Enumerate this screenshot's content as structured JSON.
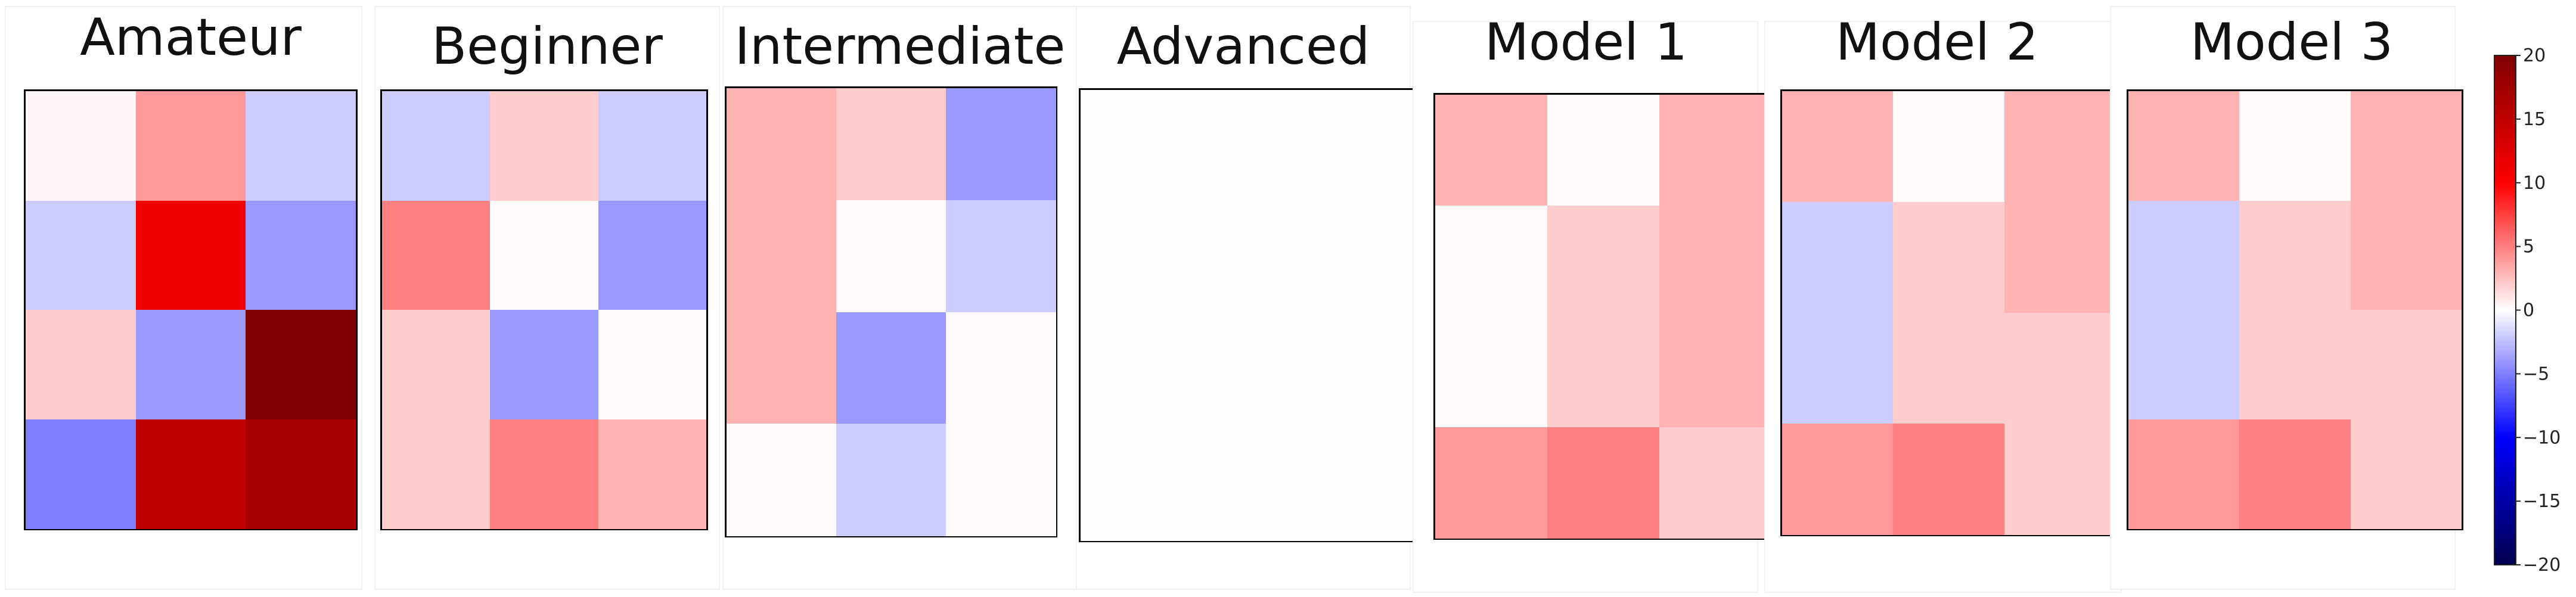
{
  "chart_data": {
    "type": "heatmap",
    "colormap": "seismic",
    "vmin": -20,
    "vmax": 20,
    "colorbar_ticks": [
      20,
      15,
      10,
      5,
      0,
      -5,
      -10,
      -15,
      -20
    ],
    "colorbar_tick_labels": [
      "20",
      "15",
      "10",
      "5",
      "0",
      "−5",
      "−10",
      "−15",
      "−20"
    ],
    "panels": [
      {
        "title": "Amateur",
        "rows": 4,
        "cols": 3,
        "values": [
          [
            0.3,
            4,
            -2
          ],
          [
            -2,
            11,
            -4
          ],
          [
            2,
            -4,
            20
          ],
          [
            -5,
            15,
            17
          ]
        ]
      },
      {
        "title": "Beginner",
        "rows": 4,
        "cols": 3,
        "values": [
          [
            -2,
            2,
            -2
          ],
          [
            5,
            0.2,
            -4
          ],
          [
            2,
            -4,
            0.2
          ],
          [
            2,
            5,
            3
          ]
        ]
      },
      {
        "title": "Intermediate",
        "rows": 4,
        "cols": 3,
        "values": [
          [
            3,
            2,
            -4
          ],
          [
            3,
            0.2,
            -2
          ],
          [
            3,
            -4,
            0.2
          ],
          [
            0.2,
            -2,
            0.2
          ]
        ]
      },
      {
        "title": "Advanced",
        "rows": 1,
        "cols": 1,
        "values": [
          [
            0.1
          ]
        ]
      },
      {
        "title": "Model 1",
        "rows": 4,
        "cols": 3,
        "values": [
          [
            3,
            0.2,
            3
          ],
          [
            0.2,
            2,
            3
          ],
          [
            0.2,
            2,
            3
          ],
          [
            4,
            5,
            2
          ]
        ]
      },
      {
        "title": "Model 2",
        "rows": 4,
        "cols": 3,
        "values": [
          [
            3,
            0.2,
            3
          ],
          [
            -2,
            2,
            3
          ],
          [
            -2,
            2,
            2
          ],
          [
            4,
            5,
            2
          ]
        ]
      },
      {
        "title": "Model 3",
        "rows": 4,
        "cols": 3,
        "values": [
          [
            3,
            0.2,
            3
          ],
          [
            -2,
            2,
            3
          ],
          [
            -2,
            2,
            2
          ],
          [
            4,
            5,
            2
          ]
        ]
      }
    ]
  }
}
